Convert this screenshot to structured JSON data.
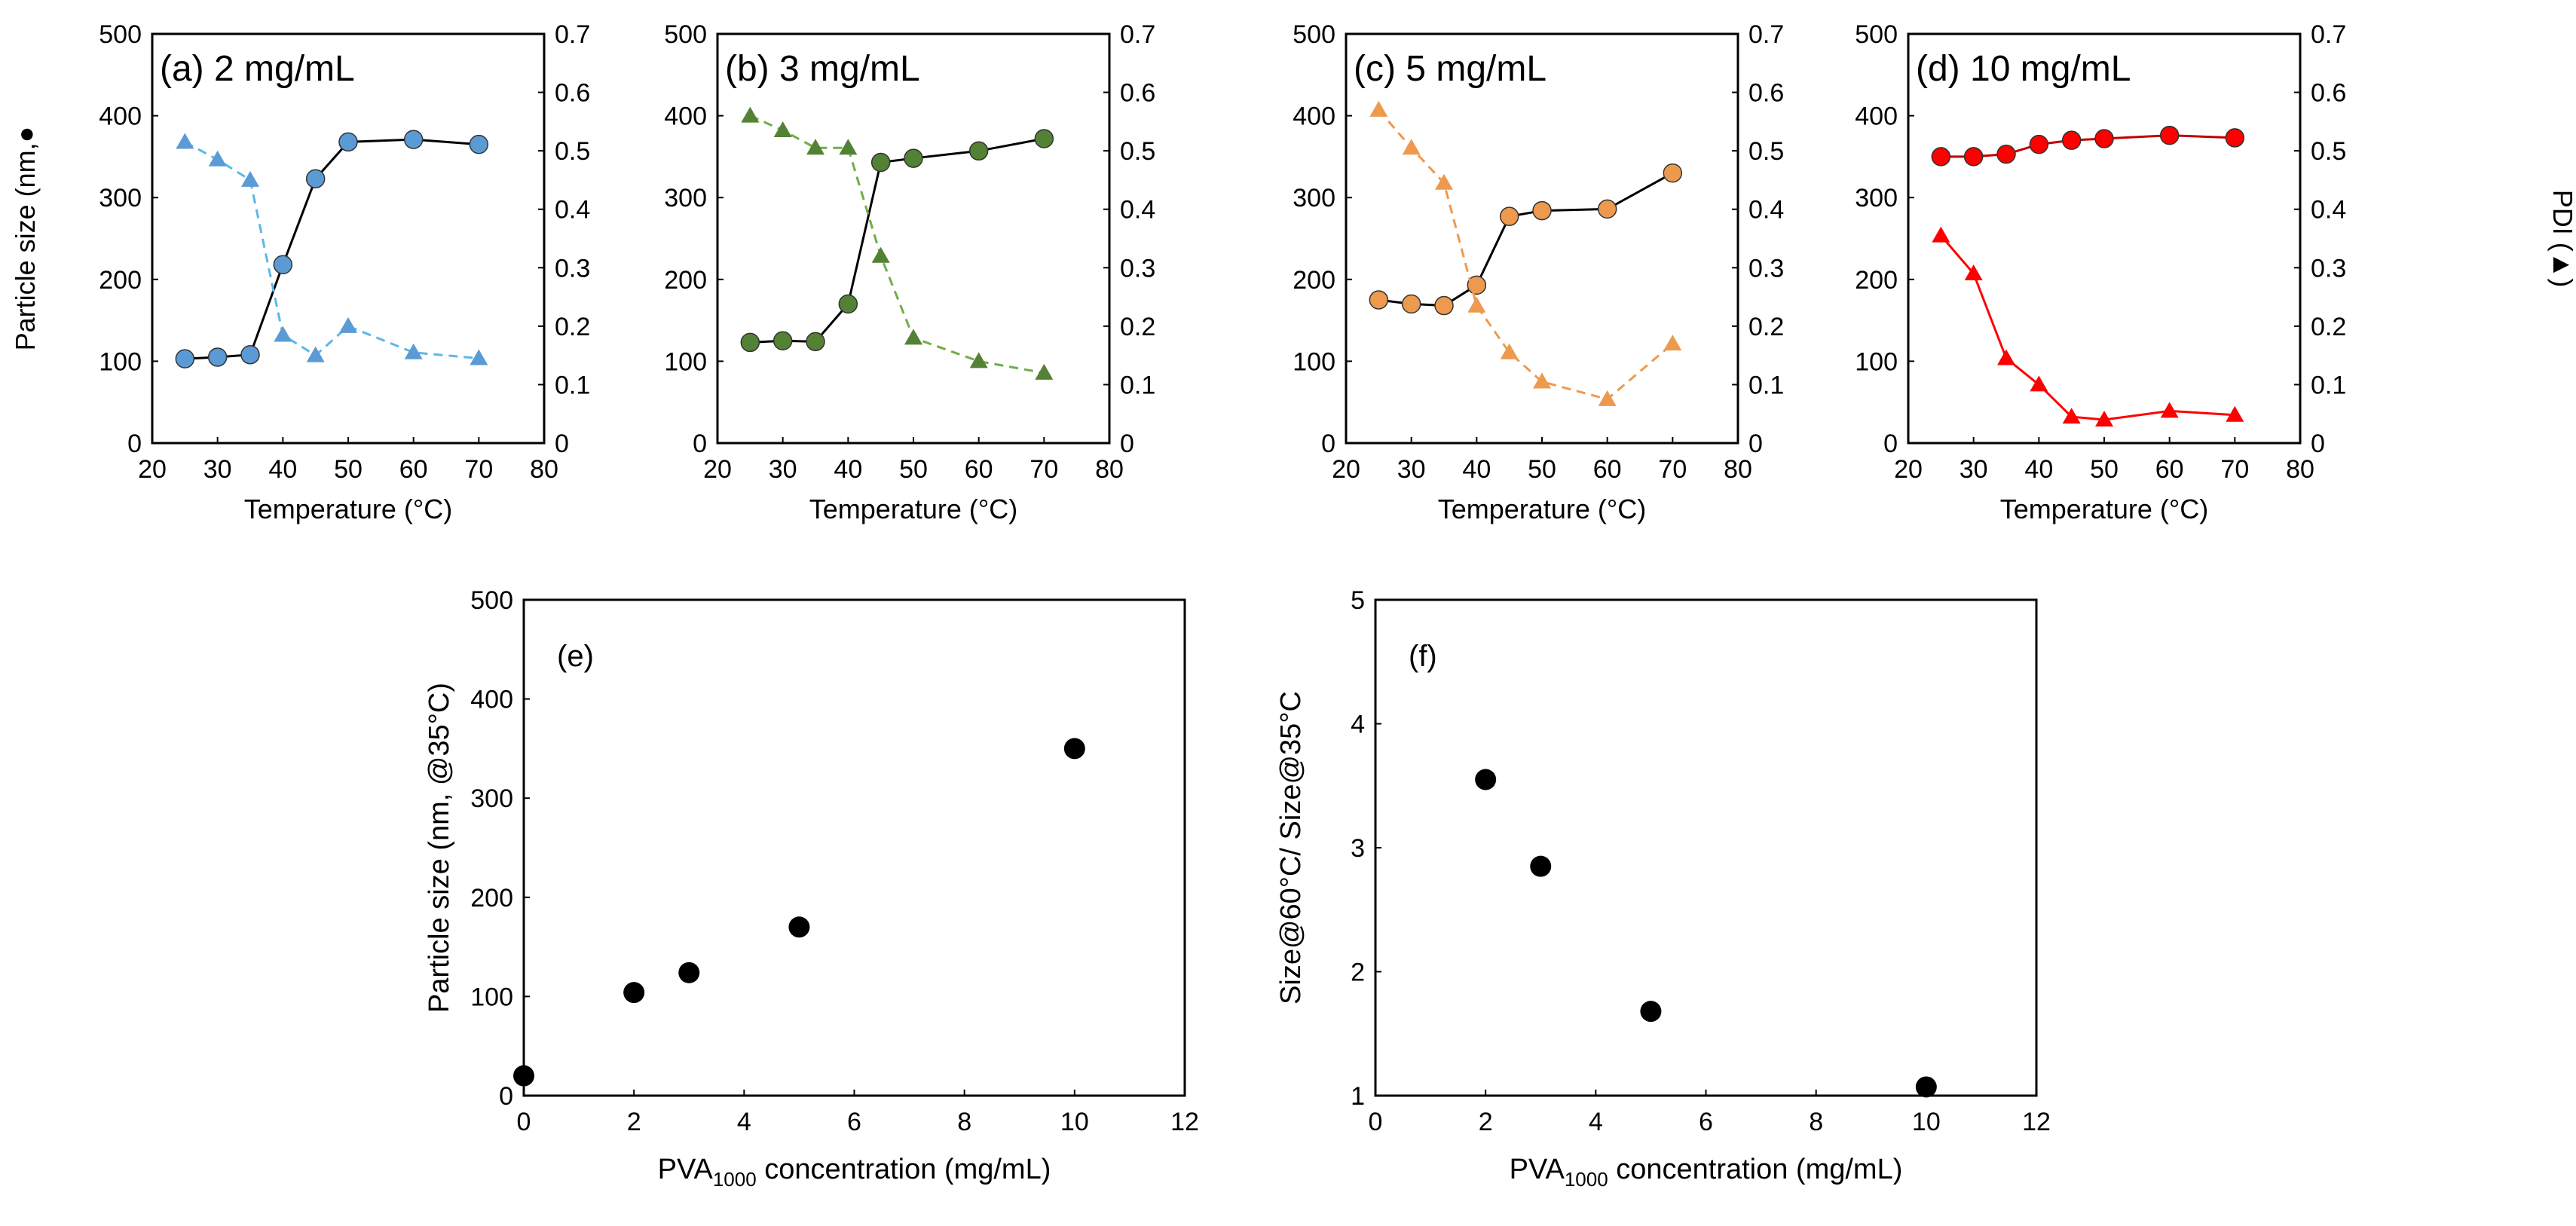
{
  "chart_data": [
    {
      "id": "a",
      "type": "line",
      "title": "(a) 2 mg/mL",
      "xlabel": "Temperature (°C)",
      "ylabel": "Particle size (nm,●",
      "y2label": "",
      "xlim": [
        20,
        80
      ],
      "xticks": [
        20,
        30,
        40,
        50,
        60,
        70,
        80
      ],
      "ylim": [
        0,
        500
      ],
      "yticks": [
        0,
        100,
        200,
        300,
        400,
        500
      ],
      "y2lim": [
        0,
        0.7
      ],
      "y2ticks": [
        "0",
        "0.1",
        "0.2",
        "0.3",
        "0.4",
        "0.5",
        "0.6",
        "0.7"
      ],
      "color": "#5b9bd5",
      "series": [
        {
          "name": "Particle size",
          "marker": "circle",
          "line": "solid",
          "lineColor": "#000000",
          "axis": "left",
          "x": [
            25,
            30,
            35,
            40,
            45,
            50,
            60,
            70
          ],
          "values": [
            103,
            105,
            108,
            218,
            323,
            368,
            371,
            365
          ]
        },
        {
          "name": "PDI",
          "marker": "triangle",
          "line": "dashed",
          "lineColor": "#5bb8e8",
          "axis": "right",
          "x": [
            25,
            30,
            35,
            40,
            45,
            50,
            60,
            70
          ],
          "values": [
            0.515,
            0.485,
            0.45,
            0.185,
            0.15,
            0.2,
            0.155,
            0.145
          ]
        }
      ]
    },
    {
      "id": "b",
      "type": "line",
      "title": "(b) 3 mg/mL",
      "xlabel": "Temperature (°C)",
      "ylabel": "",
      "y2label": "",
      "xlim": [
        20,
        80
      ],
      "xticks": [
        20,
        30,
        40,
        50,
        60,
        70,
        80
      ],
      "ylim": [
        0,
        500
      ],
      "yticks": [
        0,
        100,
        200,
        300,
        400,
        500
      ],
      "y2lim": [
        0,
        0.7
      ],
      "y2ticks": [
        "0",
        "0.1",
        "0.2",
        "0.3",
        "0.4",
        "0.5",
        "0.6",
        "0.7"
      ],
      "color": "#548235",
      "series": [
        {
          "name": "Particle size",
          "marker": "circle",
          "line": "solid",
          "lineColor": "#000000",
          "axis": "left",
          "x": [
            25,
            30,
            35,
            40,
            45,
            50,
            60,
            70
          ],
          "values": [
            123,
            125,
            124,
            170,
            343,
            348,
            357,
            372
          ]
        },
        {
          "name": "PDI",
          "marker": "triangle",
          "line": "dashed",
          "lineColor": "#70ad47",
          "axis": "right",
          "x": [
            25,
            30,
            35,
            40,
            45,
            50,
            60,
            70
          ],
          "values": [
            0.56,
            0.535,
            0.505,
            0.505,
            0.32,
            0.18,
            0.14,
            0.12
          ]
        }
      ]
    },
    {
      "id": "c",
      "type": "line",
      "title": "(c) 5 mg/mL",
      "xlabel": "Temperature (°C)",
      "ylabel": "",
      "y2label": "",
      "xlim": [
        20,
        80
      ],
      "xticks": [
        20,
        30,
        40,
        50,
        60,
        70,
        80
      ],
      "ylim": [
        0,
        500
      ],
      "yticks": [
        0,
        100,
        200,
        300,
        400,
        500
      ],
      "y2lim": [
        0,
        0.7
      ],
      "y2ticks": [
        "0",
        "0.1",
        "0.2",
        "0.3",
        "0.4",
        "0.5",
        "0.6",
        "0.7"
      ],
      "color": "#ed9a4f",
      "series": [
        {
          "name": "Particle size",
          "marker": "circle",
          "line": "solid",
          "lineColor": "#000000",
          "axis": "left",
          "x": [
            25,
            30,
            35,
            40,
            45,
            50,
            60,
            70
          ],
          "values": [
            175,
            170,
            168,
            193,
            277,
            284,
            286,
            330
          ]
        },
        {
          "name": "PDI",
          "marker": "triangle",
          "line": "dashed",
          "lineColor": "#ed9a4f",
          "axis": "right",
          "x": [
            25,
            30,
            35,
            40,
            45,
            50,
            60,
            70
          ],
          "values": [
            0.57,
            0.505,
            0.445,
            0.235,
            0.155,
            0.105,
            0.075,
            0.17
          ]
        }
      ]
    },
    {
      "id": "d",
      "type": "line",
      "title": "(d) 10 mg/mL",
      "xlabel": "Temperature (°C)",
      "ylabel": "",
      "y2label": "PDI (▲)",
      "xlim": [
        20,
        80
      ],
      "xticks": [
        20,
        30,
        40,
        50,
        60,
        70,
        80
      ],
      "ylim": [
        0,
        500
      ],
      "yticks": [
        0,
        100,
        200,
        300,
        400,
        500
      ],
      "y2lim": [
        0,
        0.7
      ],
      "y2ticks": [
        "0",
        "0.1",
        "0.2",
        "0.3",
        "0.4",
        "0.5",
        "0.6",
        "0.7"
      ],
      "color": "#ff0000",
      "series": [
        {
          "name": "Particle size",
          "marker": "circle",
          "line": "solid",
          "lineColor": "#c00000",
          "axis": "left",
          "x": [
            25,
            30,
            35,
            40,
            45,
            50,
            60,
            70
          ],
          "values": [
            350,
            350,
            353,
            365,
            370,
            372,
            376,
            373
          ]
        },
        {
          "name": "PDI",
          "marker": "triangle",
          "line": "solid",
          "lineColor": "#ff0000",
          "axis": "right",
          "x": [
            25,
            30,
            35,
            40,
            45,
            50,
            60,
            70
          ],
          "values": [
            0.355,
            0.29,
            0.145,
            0.1,
            0.045,
            0.04,
            0.055,
            0.048
          ]
        }
      ]
    },
    {
      "id": "e",
      "type": "scatter",
      "title": "(e)",
      "xlabel": "PVA1000 concentration (mg/mL)",
      "xlabel_main": "PVA",
      "xlabel_sub": "1000",
      "xlabel_rest": " concentration (mg/mL)",
      "ylabel": "Particle size (nm, @35°C)",
      "xlim": [
        0,
        12
      ],
      "xticks": [
        0,
        2,
        4,
        6,
        8,
        10,
        12
      ],
      "ylim": [
        0,
        500
      ],
      "yticks": [
        0,
        100,
        200,
        300,
        400,
        500
      ],
      "color": "#000000",
      "series": [
        {
          "name": "Particle size @35°C",
          "marker": "circle",
          "x": [
            0,
            2,
            3,
            5,
            10
          ],
          "values": [
            20,
            104,
            124,
            170,
            350
          ]
        }
      ]
    },
    {
      "id": "f",
      "type": "scatter",
      "title": "(f)",
      "xlabel": "PVA1000 concentration (mg/mL)",
      "xlabel_main": "PVA",
      "xlabel_sub": "1000",
      "xlabel_rest": " concentration (mg/mL)",
      "ylabel": "Size@60°C/ Size@35°C",
      "xlim": [
        0,
        12
      ],
      "xticks": [
        0,
        2,
        4,
        6,
        8,
        10,
        12
      ],
      "ylim": [
        1,
        5
      ],
      "yticks": [
        1,
        2,
        3,
        4,
        5
      ],
      "color": "#000000",
      "series": [
        {
          "name": "Size ratio",
          "marker": "circle",
          "x": [
            2,
            3,
            5,
            10
          ],
          "values": [
            3.55,
            2.85,
            1.68,
            1.07
          ]
        }
      ]
    }
  ]
}
